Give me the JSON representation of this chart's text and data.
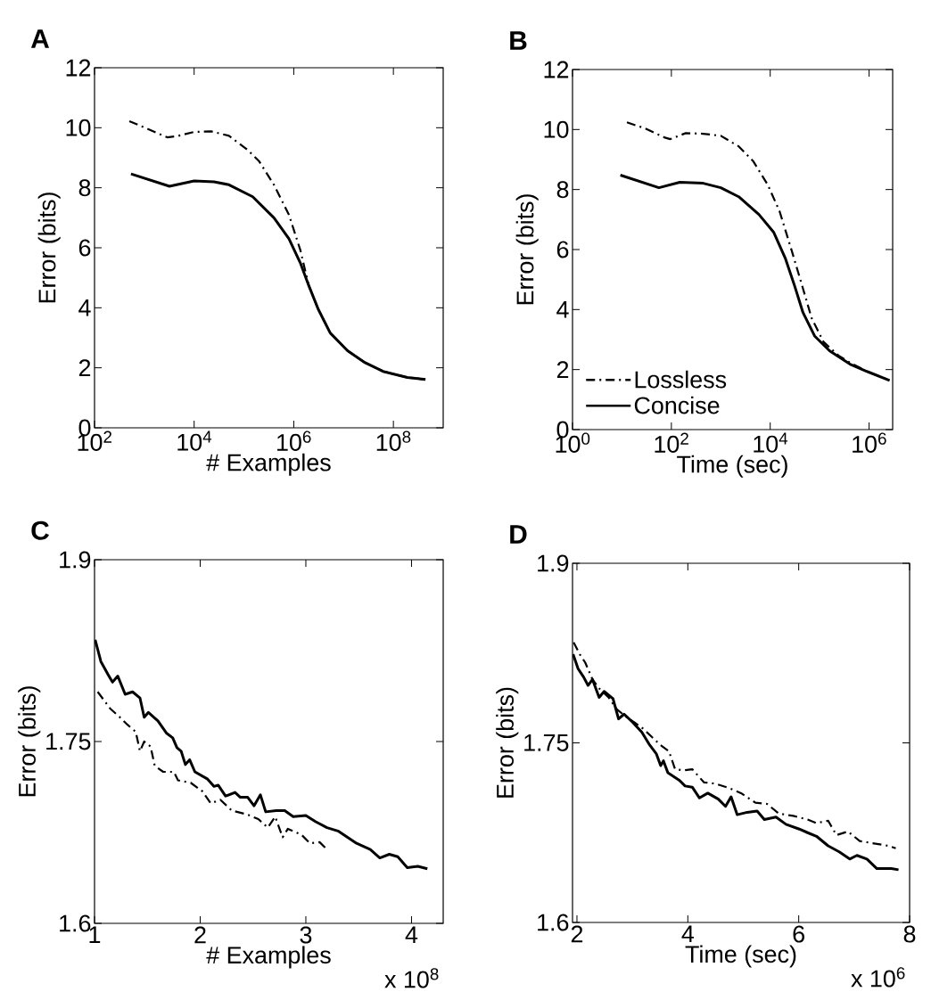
{
  "chart_data": [
    {
      "type": "line",
      "title": "**A**",
      "xlabel": "# Examples",
      "ylabel": "Error (bits)",
      "log": "x",
      "xlim": [
        100,
        1000000000
      ],
      "ylim": [
        0,
        12
      ],
      "xticks": [
        {
          "value": 100,
          "label": "10$^{2}$"
        },
        {
          "value": 10000,
          "label": "10$^{4}$"
        },
        {
          "value": 1000000,
          "label": "10$^{6}$"
        },
        {
          "value": 100000000,
          "label": "10$^{8}$"
        }
      ],
      "yticks": [
        0,
        2,
        4,
        6,
        8,
        10,
        12
      ],
      "series": [
        {
          "color": "#000000",
          "line_style": "dashdot",
          "x": [
            500,
            2900,
            4800,
            10000,
            22000,
            50000,
            115000,
            200000,
            400000,
            800000,
            1350000,
            2000000,
            3100000,
            5400000,
            12000000,
            27000000,
            62000000,
            190000000,
            440000000
          ],
          "values": [
            10.22,
            9.68,
            9.73,
            9.86,
            9.88,
            9.73,
            9.28,
            8.89,
            8.1,
            7.1,
            5.93,
            4.74,
            3.95,
            3.16,
            2.57,
            2.17,
            1.88,
            1.68,
            1.61
          ]
        },
        {
          "color": "#000000",
          "line_style": "solid",
          "x": [
            540,
            3200,
            10000,
            25000,
            50000,
            150000,
            400000,
            800000,
            1350000,
            2000000,
            3100000,
            5400000,
            12000000,
            27000000,
            62000000,
            190000000,
            440000000
          ],
          "values": [
            8.46,
            8.05,
            8.23,
            8.2,
            8.1,
            7.7,
            7.0,
            6.3,
            5.5,
            4.74,
            3.95,
            3.16,
            2.57,
            2.17,
            1.88,
            1.68,
            1.61
          ]
        }
      ]
    },
    {
      "type": "line",
      "title": "**B**",
      "xlabel": "Time (sec)",
      "ylabel": "Error (bits)",
      "log": "x",
      "xlim": [
        1,
        3000000
      ],
      "ylim": [
        0,
        12
      ],
      "legend": "bottom left",
      "xticks": [
        {
          "value": 1,
          "label": "10$^{0}$"
        },
        {
          "value": 100,
          "label": "10$^{2}$"
        },
        {
          "value": 10000,
          "label": "10$^{4}$"
        },
        {
          "value": 1000000,
          "label": "10$^{6}$"
        }
      ],
      "yticks": [
        0,
        2,
        4,
        6,
        8,
        10,
        12
      ],
      "series": [
        {
          "name": "Lossless",
          "color": "#000000",
          "line_style": "dashdot",
          "x": [
            12.6,
            29,
            74,
            95,
            195,
            440,
            1000,
            2300,
            4500,
            8900,
            15500,
            27000,
            46000,
            69000,
            120000,
            240000,
            410000,
            930000,
            2600000
          ],
          "values": [
            10.24,
            10.04,
            9.73,
            9.68,
            9.88,
            9.86,
            9.79,
            9.44,
            8.95,
            8.16,
            7.27,
            5.98,
            4.7,
            3.71,
            2.92,
            2.47,
            2.23,
            1.93,
            1.64
          ]
        },
        {
          "name": "Concise",
          "color": "#000000",
          "line_style": "solid",
          "x": [
            9.3,
            56,
            148,
            440,
            1000,
            2300,
            5900,
            11700,
            20400,
            31000,
            46000,
            79000,
            160000,
            410000,
            930000,
            2600000
          ],
          "values": [
            8.48,
            8.06,
            8.24,
            8.21,
            8.06,
            7.76,
            7.17,
            6.58,
            5.69,
            4.8,
            3.9,
            3.12,
            2.62,
            2.18,
            1.93,
            1.64
          ]
        }
      ]
    },
    {
      "type": "line",
      "title": "**C**",
      "xlabel": "# Examples",
      "ylabel": "Error (bits)",
      "annotations": [
        "x 10$^{8}$"
      ],
      "xlim": [
        1,
        4.3
      ],
      "ylim": [
        1.6,
        1.9
      ],
      "xticks": [
        1,
        2,
        3,
        4
      ],
      "yticks": [
        1.6,
        1.75,
        1.9
      ],
      "series": [
        {
          "color": "#000000",
          "line_style": "dashdot",
          "x": [
            1.03,
            1.15,
            1.24,
            1.31,
            1.39,
            1.43,
            1.47,
            1.53,
            1.57,
            1.65,
            1.75,
            1.79,
            1.91,
            2.02,
            2.1,
            2.19,
            2.3,
            2.44,
            2.55,
            2.64,
            2.71,
            2.78,
            2.83,
            2.96,
            3.04,
            3.13,
            3.2
          ],
          "values": [
            1.791,
            1.777,
            1.77,
            1.764,
            1.758,
            1.742,
            1.75,
            1.746,
            1.73,
            1.725,
            1.725,
            1.718,
            1.716,
            1.709,
            1.699,
            1.702,
            1.693,
            1.69,
            1.686,
            1.679,
            1.688,
            1.671,
            1.678,
            1.673,
            1.666,
            1.667,
            1.661
          ]
        },
        {
          "color": "#000000",
          "line_style": "solid",
          "x": [
            1.006,
            1.06,
            1.13,
            1.17,
            1.22,
            1.29,
            1.36,
            1.43,
            1.47,
            1.51,
            1.6,
            1.68,
            1.74,
            1.78,
            1.82,
            1.86,
            1.9,
            1.95,
            2.07,
            2.13,
            2.17,
            2.24,
            2.33,
            2.38,
            2.45,
            2.51,
            2.57,
            2.62,
            2.72,
            2.8,
            2.88,
            3.0,
            3.09,
            3.2,
            3.31,
            3.48,
            3.61,
            3.7,
            3.79,
            3.87,
            3.96,
            4.06,
            4.15
          ],
          "values": [
            1.834,
            1.816,
            1.805,
            1.799,
            1.804,
            1.789,
            1.791,
            1.786,
            1.77,
            1.774,
            1.767,
            1.757,
            1.753,
            1.745,
            1.742,
            1.731,
            1.735,
            1.725,
            1.719,
            1.713,
            1.714,
            1.705,
            1.708,
            1.704,
            1.704,
            1.697,
            1.706,
            1.692,
            1.693,
            1.693,
            1.688,
            1.689,
            1.684,
            1.679,
            1.676,
            1.666,
            1.661,
            1.654,
            1.657,
            1.655,
            1.646,
            1.647,
            1.645
          ]
        }
      ]
    },
    {
      "type": "line",
      "title": "**D**",
      "xlabel": "Time (sec)",
      "ylabel": "Error (bits)",
      "annotations": [
        "x 10$^{6}$"
      ],
      "xlim": [
        1.92,
        8
      ],
      "ylim": [
        1.6,
        1.9
      ],
      "xticks": [
        2,
        4,
        6,
        8
      ],
      "yticks": [
        1.6,
        1.75,
        1.9
      ],
      "series": [
        {
          "color": "#000000",
          "line_style": "dashdot",
          "x": [
            1.94,
            2.05,
            2.15,
            2.28,
            2.41,
            2.57,
            2.72,
            2.88,
            3.04,
            3.19,
            3.35,
            3.51,
            3.66,
            3.77,
            3.92,
            4.08,
            4.29,
            4.49,
            4.76,
            4.96,
            5.22,
            5.43,
            5.64,
            5.9,
            6.16,
            6.32,
            6.53,
            6.68,
            6.89,
            7.1,
            7.36,
            7.62,
            7.75
          ],
          "values": [
            1.834,
            1.824,
            1.817,
            1.803,
            1.795,
            1.788,
            1.778,
            1.772,
            1.767,
            1.762,
            1.755,
            1.748,
            1.743,
            1.728,
            1.727,
            1.728,
            1.717,
            1.716,
            1.712,
            1.708,
            1.7,
            1.699,
            1.691,
            1.689,
            1.686,
            1.683,
            1.685,
            1.673,
            1.676,
            1.668,
            1.666,
            1.664,
            1.662
          ]
        },
        {
          "color": "#000000",
          "line_style": "solid",
          "x": [
            1.93,
            2.02,
            2.12,
            2.2,
            2.28,
            2.4,
            2.49,
            2.65,
            2.75,
            2.85,
            3.01,
            3.17,
            3.3,
            3.43,
            3.51,
            3.56,
            3.64,
            3.84,
            3.95,
            4.08,
            4.21,
            4.36,
            4.55,
            4.68,
            4.78,
            4.89,
            5.07,
            5.25,
            5.38,
            5.59,
            5.77,
            6.01,
            6.16,
            6.32,
            6.53,
            6.73,
            6.92,
            7.05,
            7.23,
            7.41,
            7.67,
            7.8
          ],
          "values": [
            1.824,
            1.812,
            1.805,
            1.798,
            1.803,
            1.788,
            1.793,
            1.787,
            1.77,
            1.774,
            1.767,
            1.759,
            1.749,
            1.741,
            1.731,
            1.735,
            1.725,
            1.719,
            1.714,
            1.713,
            1.704,
            1.708,
            1.703,
            1.697,
            1.705,
            1.69,
            1.692,
            1.693,
            1.686,
            1.688,
            1.682,
            1.678,
            1.675,
            1.672,
            1.664,
            1.659,
            1.653,
            1.656,
            1.653,
            1.645,
            1.645,
            1.644
          ]
        }
      ]
    }
  ]
}
